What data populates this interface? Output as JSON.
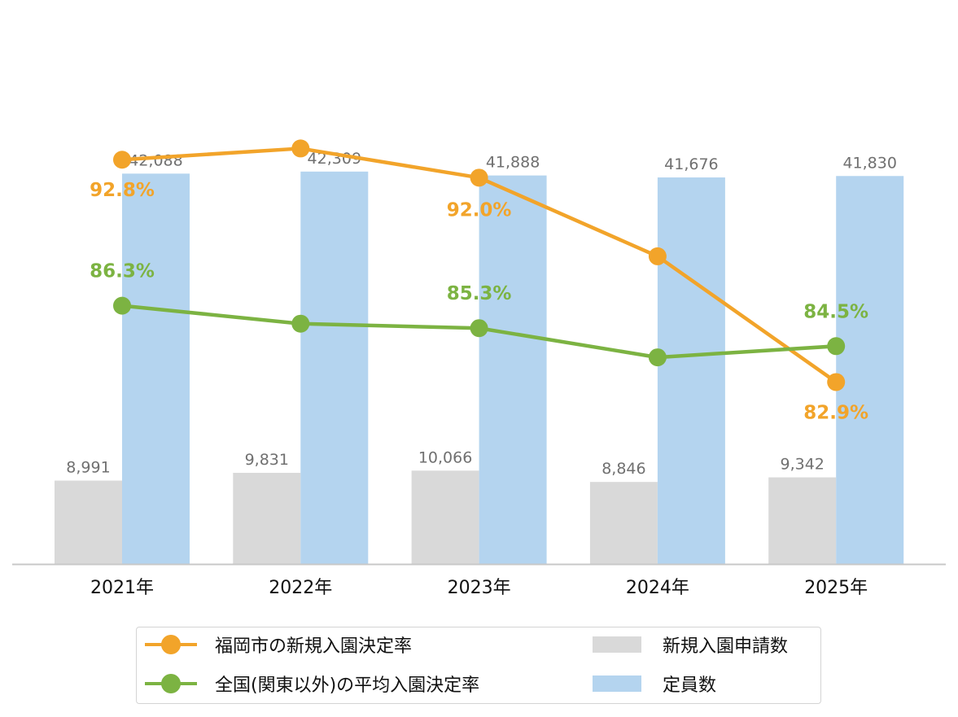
{
  "chart_data": {
    "type": "bar",
    "categories": [
      "2021年",
      "2022年",
      "2023年",
      "2024年",
      "2025年"
    ],
    "ylim_bars": [
      0,
      49400
    ],
    "ylim_rate": [
      74.8,
      95.2
    ],
    "grid": false,
    "legend_position": "bottom",
    "bar_series": [
      {
        "name": "新規入園申請数",
        "color": "#d9d9d9",
        "values": [
          8991,
          9831,
          10066,
          8846,
          9342
        ],
        "labels": [
          "8,991",
          "9,831",
          "10,066",
          "8,846",
          "9,342"
        ]
      },
      {
        "name": "定員数",
        "color": "#b4d4ef",
        "values": [
          42088,
          42309,
          41888,
          41676,
          41830
        ],
        "labels": [
          "42,088",
          "42,309",
          "41,888",
          "41,676",
          "41,830"
        ]
      }
    ],
    "line_series": [
      {
        "name": "福岡市の新規入園決定率",
        "color": "#f2a42a",
        "values": [
          92.8,
          93.3,
          92.0,
          88.5,
          82.9
        ],
        "labels": [
          "92.8%",
          "",
          "92.0%",
          "",
          "82.9%"
        ]
      },
      {
        "name": "全国(関東以外)の平均入園決定率",
        "color": "#7cb342",
        "values": [
          86.3,
          85.5,
          85.3,
          84.0,
          84.5
        ],
        "labels": [
          "86.3%",
          "",
          "85.3%",
          "",
          "84.5%"
        ]
      }
    ],
    "label_text_color": "#707070"
  }
}
